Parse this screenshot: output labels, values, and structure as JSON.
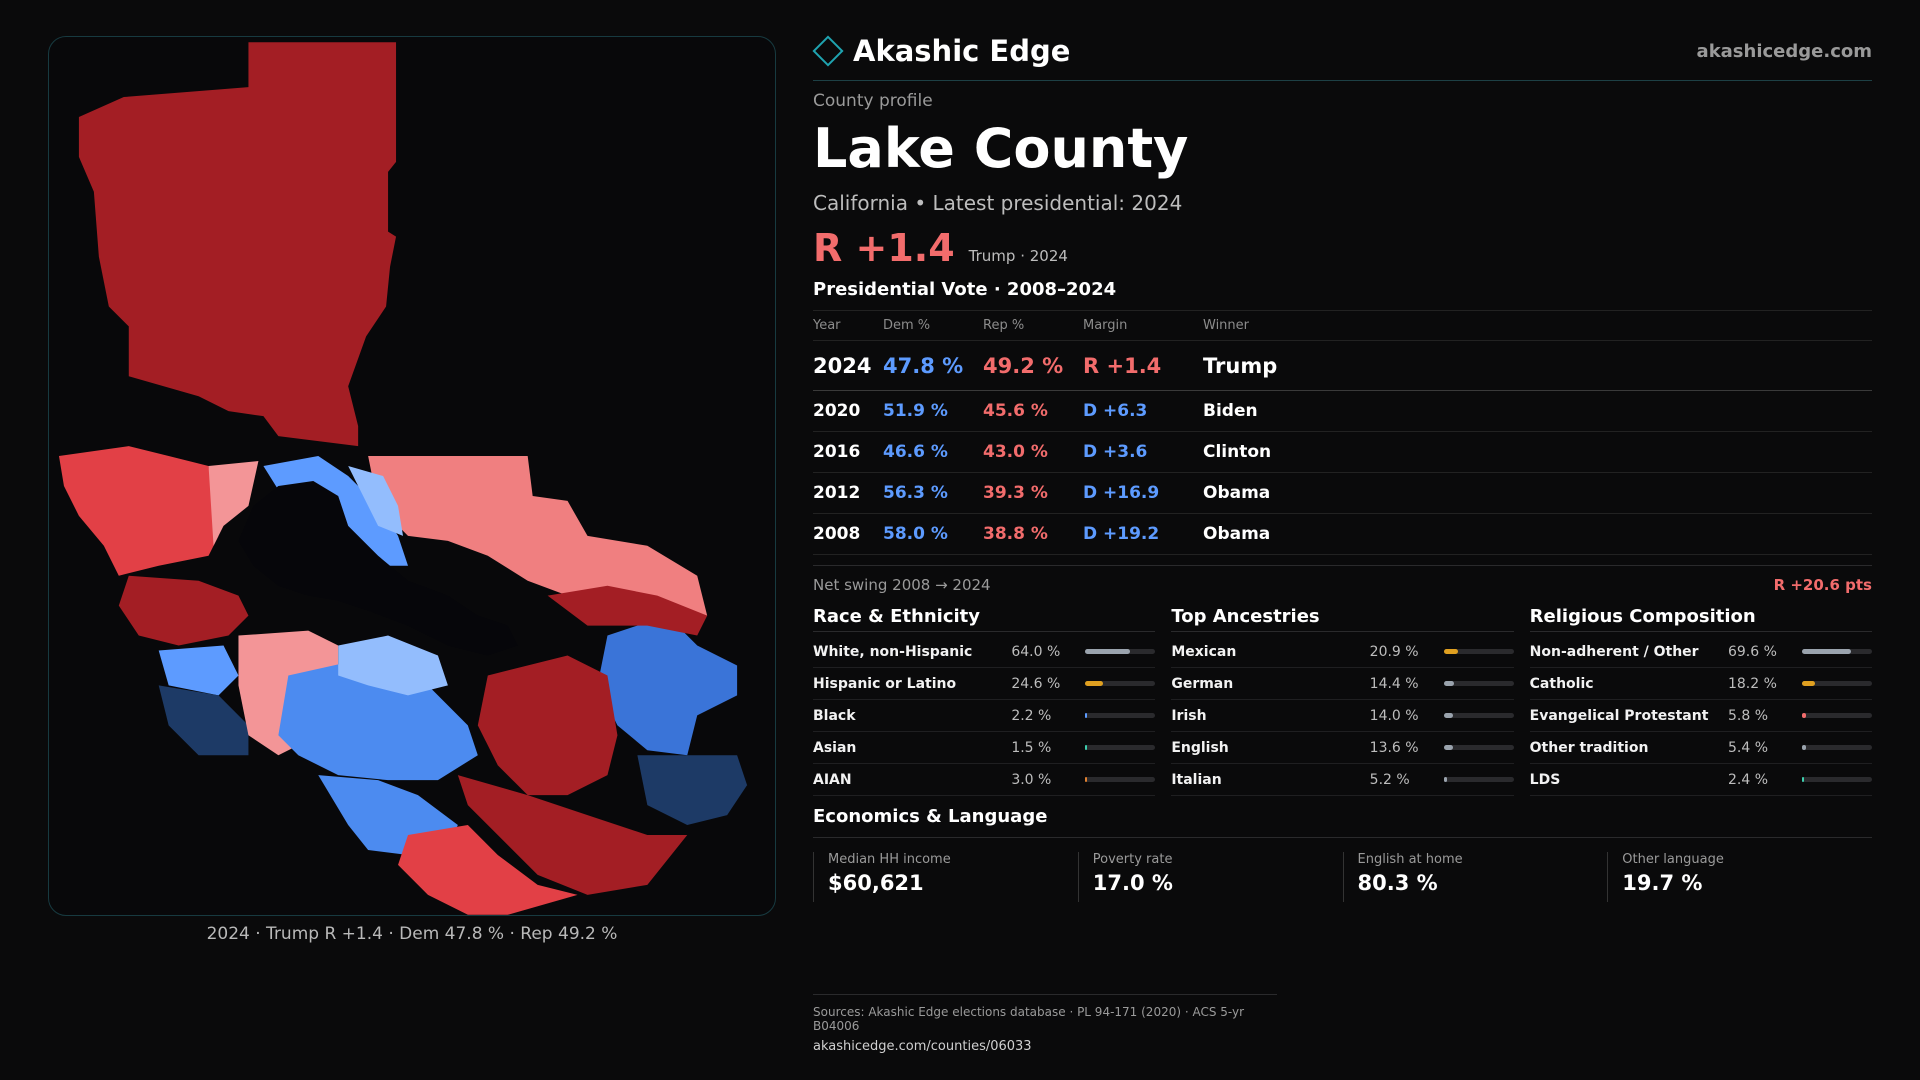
{
  "brand": {
    "name": "Akashic Edge",
    "domain": "akashicedge.com"
  },
  "profile": {
    "kicker": "County profile",
    "title": "Lake County",
    "subtitle": "California • Latest presidential: 2024",
    "margin": "R +1.4",
    "margin_note": "Trump · 2024"
  },
  "presidential": {
    "title": "Presidential Vote · 2008–2024",
    "headers": {
      "year": "Year",
      "dem": "Dem %",
      "rep": "Rep %",
      "margin": "Margin",
      "winner": "Winner"
    },
    "rows": [
      {
        "year": "2024",
        "dem": "47.8 %",
        "rep": "49.2 %",
        "margin": "R +1.4",
        "winner": "Trump",
        "party": "r"
      },
      {
        "year": "2020",
        "dem": "51.9 %",
        "rep": "45.6 %",
        "margin": "D +6.3",
        "winner": "Biden",
        "party": "d"
      },
      {
        "year": "2016",
        "dem": "46.6 %",
        "rep": "43.0 %",
        "margin": "D +3.6",
        "winner": "Clinton",
        "party": "d"
      },
      {
        "year": "2012",
        "dem": "56.3 %",
        "rep": "39.3 %",
        "margin": "D +16.9",
        "winner": "Obama",
        "party": "d"
      },
      {
        "year": "2008",
        "dem": "58.0 %",
        "rep": "38.8 %",
        "margin": "D +19.2",
        "winner": "Obama",
        "party": "d"
      }
    ]
  },
  "swing": {
    "label": "Net swing 2008 → 2024",
    "value": "R +20.6 pts"
  },
  "race": {
    "title": "Race & Ethnicity",
    "items": [
      {
        "label": "White, non-Hispanic",
        "pct": "64.0 %",
        "value": 0.64,
        "color": "#9aa3ad"
      },
      {
        "label": "Hispanic or Latino",
        "pct": "24.6 %",
        "value": 0.246,
        "color": "#e0a020"
      },
      {
        "label": "Black",
        "pct": "2.2 %",
        "value": 0.022,
        "color": "#5d9bff"
      },
      {
        "label": "Asian",
        "pct": "1.5 %",
        "value": 0.015,
        "color": "#3ecfae"
      },
      {
        "label": "AIAN",
        "pct": "3.0 %",
        "value": 0.03,
        "color": "#e08030"
      }
    ]
  },
  "ancestry": {
    "title": "Top Ancestries",
    "items": [
      {
        "label": "Mexican",
        "pct": "20.9 %",
        "value": 0.209,
        "color": "#e0a020"
      },
      {
        "label": "German",
        "pct": "14.4 %",
        "value": 0.144,
        "color": "#9aa3ad"
      },
      {
        "label": "Irish",
        "pct": "14.0 %",
        "value": 0.14,
        "color": "#9aa3ad"
      },
      {
        "label": "English",
        "pct": "13.6 %",
        "value": 0.136,
        "color": "#9aa3ad"
      },
      {
        "label": "Italian",
        "pct": "5.2 %",
        "value": 0.052,
        "color": "#9aa3ad"
      }
    ]
  },
  "religion": {
    "title": "Religious Composition",
    "items": [
      {
        "label": "Non-adherent / Other",
        "pct": "69.6 %",
        "value": 0.696,
        "color": "#9aa3ad"
      },
      {
        "label": "Catholic",
        "pct": "18.2 %",
        "value": 0.182,
        "color": "#e0a020"
      },
      {
        "label": "Evangelical Protestant",
        "pct": "5.8 %",
        "value": 0.058,
        "color": "#f26c6c"
      },
      {
        "label": "Other tradition",
        "pct": "5.4 %",
        "value": 0.054,
        "color": "#9aa3ad"
      },
      {
        "label": "LDS",
        "pct": "2.4 %",
        "value": 0.024,
        "color": "#3ecfae"
      }
    ]
  },
  "economics": {
    "title": "Economics & Language",
    "items": [
      {
        "label": "Median HH income",
        "value": "$60,621"
      },
      {
        "label": "Poverty rate",
        "value": "17.0 %"
      },
      {
        "label": "English at home",
        "value": "80.3 %"
      },
      {
        "label": "Other language",
        "value": "19.7 %"
      }
    ]
  },
  "map": {
    "caption": "2024 · Trump R +1.4 · Dem 47.8 % · Rep 49.2 %"
  },
  "footer": {
    "sources": "Sources: Akashic Edge elections database · PL 94-171 (2020) · ACS 5-yr B04006",
    "url": "akashicedge.com/counties/06033"
  }
}
